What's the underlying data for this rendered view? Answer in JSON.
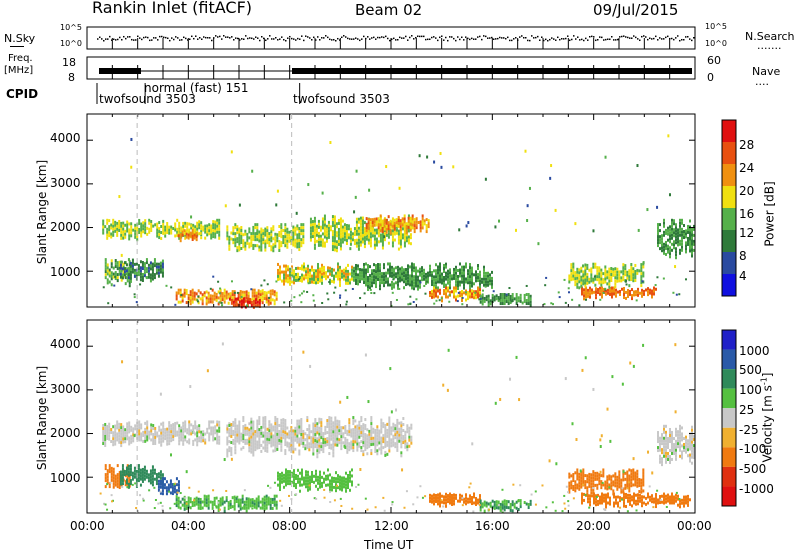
{
  "header": {
    "station": "Rankin Inlet (fitACF)",
    "beam": "Beam 02",
    "date": "09/Jul/2015"
  },
  "top_panels": {
    "nsky_label": "N.Sky",
    "nsearch_label": "N.Search",
    "nsearch_dots": ".......",
    "log_tick_high": "10^5",
    "log_tick_low": "10^0",
    "freq_label_1": "Freq.",
    "freq_label_2": "[MHz]",
    "freq_ticks": [
      "18",
      "8"
    ],
    "nave_label": "Nave",
    "nave_dots": "....",
    "nave_ticks": [
      "60",
      "0"
    ],
    "cpid_label": "CPID",
    "cpid_segments": [
      {
        "label": "twofsound 3503",
        "start_hour": 0.0
      },
      {
        "label": "normal (fast) 151",
        "start_hour": 1.9
      },
      {
        "label": "twofsound 3503",
        "start_hour": 8.0
      }
    ]
  },
  "axes": {
    "xlabel": "Time UT",
    "ylabel": "Slant Range [km]",
    "xticks": [
      "00:00",
      "04:00",
      "08:00",
      "12:00",
      "16:00",
      "20:00",
      "00:00"
    ],
    "yticks": [
      "1000",
      "2000",
      "3000",
      "4000"
    ]
  },
  "colorbars": {
    "power": {
      "label": "Power [dB]",
      "ticks": [
        "4",
        "8",
        "12",
        "16",
        "20",
        "24",
        "28"
      ],
      "colors": [
        "#1010e0",
        "#2a4aa0",
        "#2f7a3a",
        "#55b04a",
        "#f0e010",
        "#f09010",
        "#e85010",
        "#e01010"
      ]
    },
    "velocity": {
      "label_main": "Velocity  [m s",
      "label_sup": "-1",
      "label_end": "]",
      "ticks": [
        "1000",
        "500",
        "100",
        "25",
        "-25",
        "-100",
        "-500",
        "-1000"
      ],
      "colors": [
        "#2020c8",
        "#2a5aa8",
        "#2f8a5a",
        "#55c040",
        "#c8c8c8",
        "#f0b030",
        "#f07a10",
        "#e03010",
        "#e01010"
      ]
    }
  },
  "chart_data": [
    {
      "type": "heatmap",
      "title": "Power",
      "xlabel": "Time UT",
      "ylabel": "Slant Range [km]",
      "xlim": [
        0,
        24
      ],
      "ylim": [
        180,
        4600
      ],
      "colorbar_label": "Power [dB]",
      "colorbar_range": [
        0,
        30
      ],
      "echo_regions": [
        {
          "t": [
            0.7,
            1.7
          ],
          "r": [
            700,
            1300
          ],
          "value": 14
        },
        {
          "t": [
            0.6,
            5.2
          ],
          "r": [
            1750,
            2200
          ],
          "value": 16
        },
        {
          "t": [
            3.5,
            4.5
          ],
          "r": [
            1700,
            2000
          ],
          "value": 22
        },
        {
          "t": [
            1.3,
            3.0
          ],
          "r": [
            800,
            1300
          ],
          "value": 10
        },
        {
          "t": [
            3.5,
            7.5
          ],
          "r": [
            250,
            600
          ],
          "value": 22
        },
        {
          "t": [
            5.6,
            6.8
          ],
          "r": [
            180,
            400
          ],
          "value": 28
        },
        {
          "t": [
            5.5,
            8.5
          ],
          "r": [
            1500,
            2100
          ],
          "value": 16
        },
        {
          "t": [
            7.5,
            10.5
          ],
          "r": [
            700,
            1200
          ],
          "value": 18
        },
        {
          "t": [
            8.8,
            12.8
          ],
          "r": [
            1500,
            2300
          ],
          "value": 16
        },
        {
          "t": [
            11.0,
            13.5
          ],
          "r": [
            1900,
            2300
          ],
          "value": 22
        },
        {
          "t": [
            10.5,
            16.0
          ],
          "r": [
            600,
            1200
          ],
          "value": 12
        },
        {
          "t": [
            13.5,
            15.5
          ],
          "r": [
            350,
            650
          ],
          "value": 22
        },
        {
          "t": [
            15.5,
            17.5
          ],
          "r": [
            250,
            500
          ],
          "value": 12
        },
        {
          "t": [
            19.5,
            22.5
          ],
          "r": [
            400,
            650
          ],
          "value": 24
        },
        {
          "t": [
            19.0,
            22.0
          ],
          "r": [
            650,
            1200
          ],
          "value": 16
        },
        {
          "t": [
            22.5,
            24.0
          ],
          "r": [
            1300,
            2200
          ],
          "value": 12
        }
      ]
    },
    {
      "type": "heatmap",
      "title": "Velocity",
      "xlabel": "Time UT",
      "ylabel": "Slant Range [km]",
      "xlim": [
        0,
        24
      ],
      "ylim": [
        180,
        4600
      ],
      "colorbar_label": "Velocity [m s-1]",
      "colorbar_range": [
        -1000,
        1000
      ],
      "echo_regions": [
        {
          "t": [
            0.6,
            5.2
          ],
          "r": [
            1750,
            2300
          ],
          "value": 0
        },
        {
          "t": [
            0.7,
            1.7
          ],
          "r": [
            700,
            1300
          ],
          "value": -300
        },
        {
          "t": [
            1.3,
            3.0
          ],
          "r": [
            800,
            1300
          ],
          "value": 150
        },
        {
          "t": [
            2.8,
            3.6
          ],
          "r": [
            600,
            1000
          ],
          "value": 600
        },
        {
          "t": [
            3.5,
            7.5
          ],
          "r": [
            250,
            600
          ],
          "value": 80
        },
        {
          "t": [
            5.5,
            12.8
          ],
          "r": [
            1500,
            2400
          ],
          "value": 0
        },
        {
          "t": [
            7.5,
            10.5
          ],
          "r": [
            700,
            1200
          ],
          "value": 60
        },
        {
          "t": [
            13.5,
            15.5
          ],
          "r": [
            350,
            650
          ],
          "value": -150
        },
        {
          "t": [
            15.5,
            17.5
          ],
          "r": [
            250,
            500
          ],
          "value": 100
        },
        {
          "t": [
            19.5,
            23.8
          ],
          "r": [
            350,
            650
          ],
          "value": -300
        },
        {
          "t": [
            19.0,
            22.0
          ],
          "r": [
            650,
            1200
          ],
          "value": -300
        },
        {
          "t": [
            22.5,
            24.0
          ],
          "r": [
            1300,
            2200
          ],
          "value": 0
        }
      ]
    }
  ]
}
